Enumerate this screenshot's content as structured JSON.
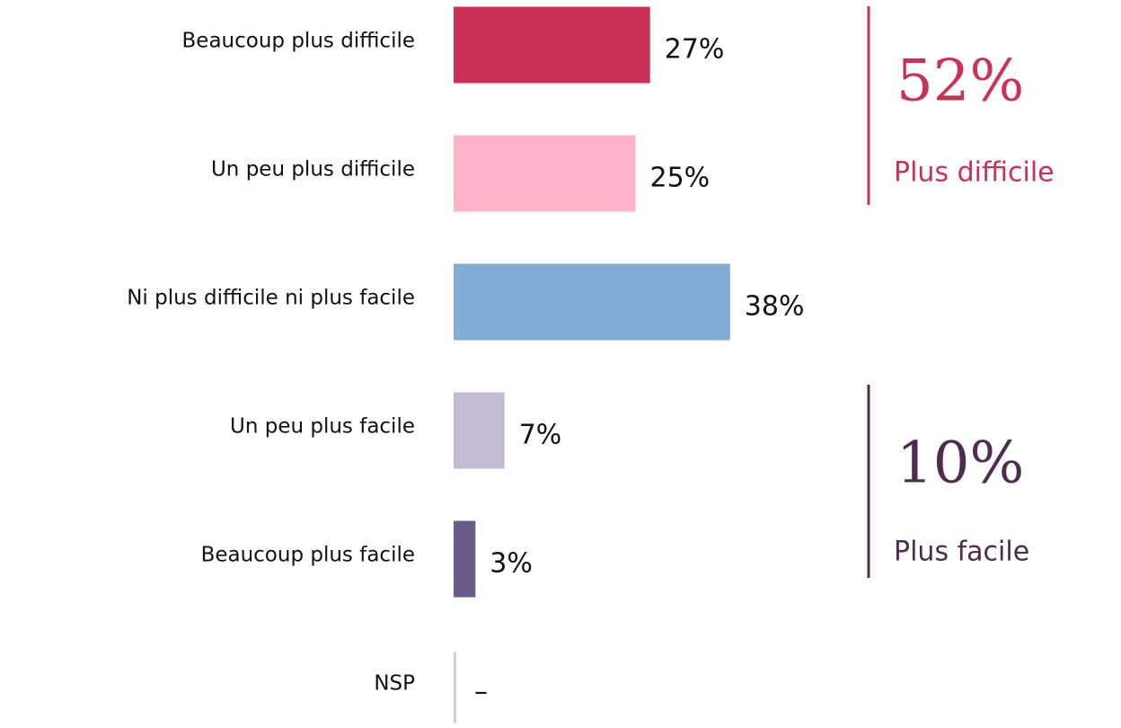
{
  "chart_data": {
    "type": "bar",
    "orientation": "horizontal",
    "categories": [
      "Beaucoup plus difficile",
      "Un peu plus difficile",
      "Ni plus difficile ni plus facile",
      "Un peu plus facile",
      "Beaucoup plus facile",
      "NSP"
    ],
    "values": [
      27,
      25,
      38,
      7,
      3,
      null
    ],
    "value_labels": [
      "27%",
      "25%",
      "38%",
      "7%",
      "3%",
      "–"
    ],
    "colors": [
      "#cc3057",
      "#ffb3c6",
      "#80acd6",
      "#c4bad3",
      "#6b5a8c",
      "#c9cfe3"
    ],
    "annotations": [
      {
        "headline": "52%",
        "text": "Plus difficile",
        "color": "#cc3057"
      },
      {
        "headline": "10%",
        "text": "Plus facile",
        "color": "#4e2b4f"
      }
    ]
  }
}
